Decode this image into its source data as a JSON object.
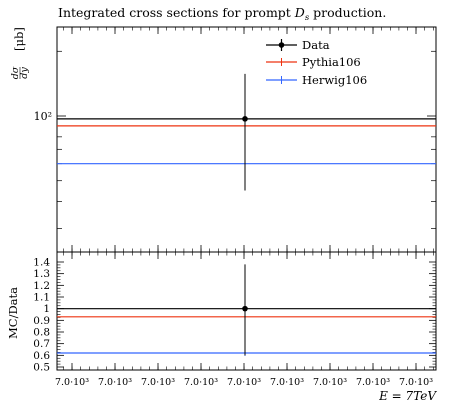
{
  "chart_data": {
    "type": "scatter",
    "title": "Integrated cross sections for prompt D_s production.",
    "title_parts": {
      "main": "Integrated cross sections for prompt ",
      "italic": "D",
      "sub": "s",
      "rest": " production."
    },
    "x_tick_labels": [
      "7.0·10³",
      "7.0·10³",
      "7.0·10³",
      "7.0·10³",
      "7.0·10³",
      "7.0·10³",
      "7.0·10³",
      "7.0·10³",
      "7.0·10³"
    ],
    "xlabel": "E = 7TeV",
    "main_panel": {
      "ylabel": "dσ/dy [μb]",
      "yscale": "log",
      "y_tick_label": "10²",
      "series": [
        {
          "name": "Data",
          "color": "#000000",
          "style": "points",
          "x": 7000,
          "y": 97,
          "yerr_up": 60,
          "yerr_down": 52
        },
        {
          "name": "Pythia106",
          "color": "#ee3311",
          "style": "line",
          "y": 90
        },
        {
          "name": "Herwig106",
          "color": "#3366ff",
          "style": "line",
          "y": 60
        }
      ],
      "legend_position": "top-right"
    },
    "ratio_panel": {
      "ylabel": "MC/Data",
      "ylim": [
        0.5,
        1.45
      ],
      "y_ticks": [
        "1.4",
        "1.3",
        "1.2",
        "1.1",
        "1",
        "0.9",
        "0.8",
        "0.7",
        "0.6",
        "0.5"
      ],
      "series": [
        {
          "name": "Data",
          "color": "#000000",
          "y": 1.0,
          "yerr_up": 0.38,
          "yerr_down": 0.4
        },
        {
          "name": "Pythia106",
          "color": "#ee3311",
          "y": 0.93
        },
        {
          "name": "Herwig106",
          "color": "#3366ff",
          "y": 0.62
        }
      ]
    }
  }
}
